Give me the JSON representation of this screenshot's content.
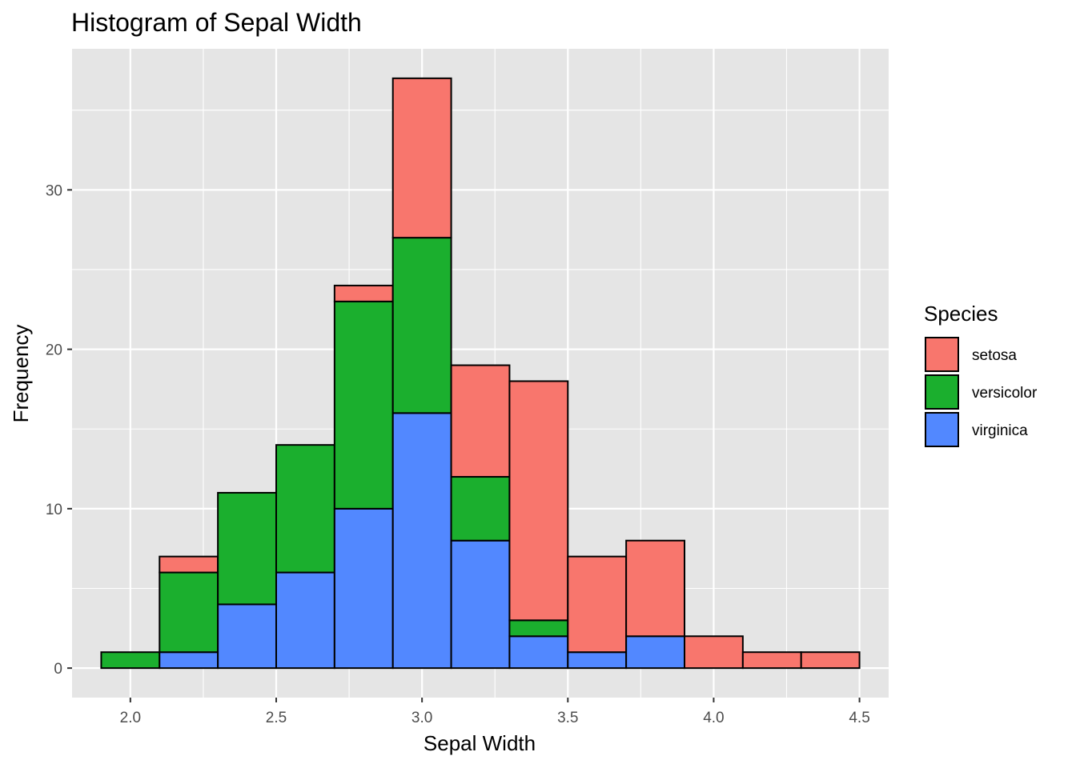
{
  "chart_data": {
    "type": "bar",
    "stacked": true,
    "title": "Histogram of Sepal Width",
    "xlabel": "Sepal Width",
    "ylabel": "Frequency",
    "bin_width": 0.2,
    "bin_centers": [
      2.0,
      2.2,
      2.4,
      2.6,
      2.8,
      3.0,
      3.2,
      3.4,
      3.6,
      3.8,
      4.0,
      4.2,
      4.4
    ],
    "series": [
      {
        "name": "setosa",
        "color": "#F8766D",
        "values": [
          0,
          1,
          0,
          0,
          1,
          10,
          7,
          15,
          6,
          6,
          2,
          1,
          1
        ]
      },
      {
        "name": "versicolor",
        "color": "#1BAF2E",
        "values": [
          1,
          5,
          7,
          8,
          13,
          11,
          4,
          1,
          0,
          0,
          0,
          0,
          0
        ]
      },
      {
        "name": "virginica",
        "color": "#5288FF",
        "values": [
          0,
          1,
          4,
          6,
          10,
          16,
          8,
          2,
          1,
          2,
          0,
          0,
          0
        ]
      }
    ],
    "stack_order_bottom_to_top": [
      "virginica",
      "versicolor",
      "setosa"
    ],
    "xlim": [
      1.8,
      4.6
    ],
    "ylim": [
      -1.85,
      38.85
    ],
    "x_ticks": [
      2.0,
      2.5,
      3.0,
      3.5,
      4.0,
      4.5
    ],
    "x_tick_labels": [
      "2.0",
      "2.5",
      "3.0",
      "3.5",
      "4.0",
      "4.5"
    ],
    "y_ticks": [
      0,
      10,
      20,
      30
    ],
    "y_tick_labels": [
      "0",
      "10",
      "20",
      "30"
    ],
    "legend": {
      "title": "Species",
      "position": "right"
    },
    "grid": true,
    "panel_background": "#E5E5E5",
    "bar_outline": "#000000"
  }
}
